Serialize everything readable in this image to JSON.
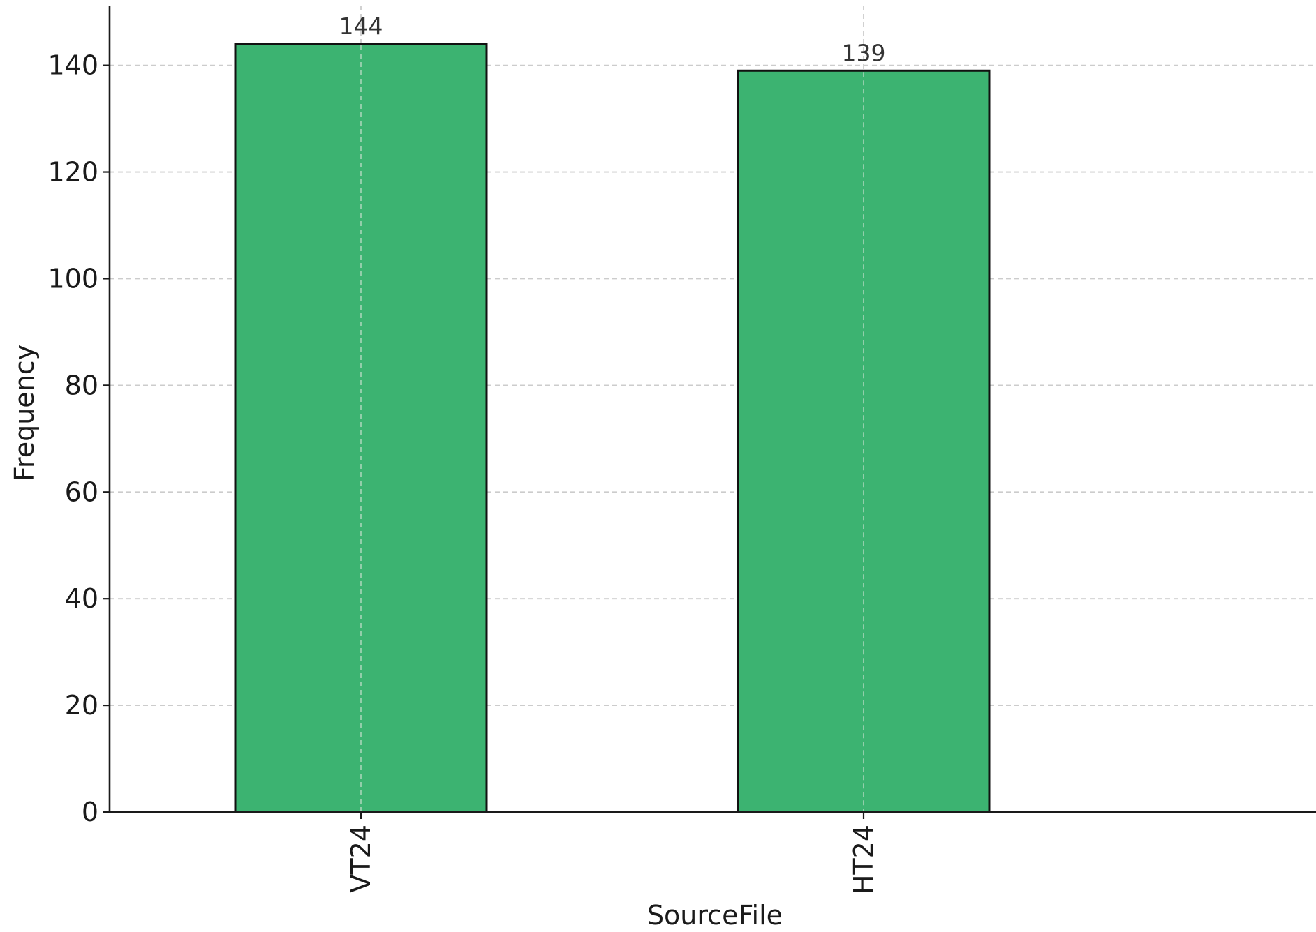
{
  "chart_data": {
    "type": "bar",
    "categories": [
      "VT24",
      "HT24"
    ],
    "values": [
      144,
      139
    ],
    "data_labels": [
      "144",
      "139"
    ],
    "xlabel": "SourceFile",
    "ylabel": "Frequency",
    "ylim": [
      0,
      151.2
    ],
    "yticks": [
      0,
      20,
      40,
      60,
      80,
      100,
      120,
      140
    ],
    "grid": true,
    "bar_color": "#3cb371",
    "edge_color": "#111111",
    "grid_color": "#cccccc"
  }
}
